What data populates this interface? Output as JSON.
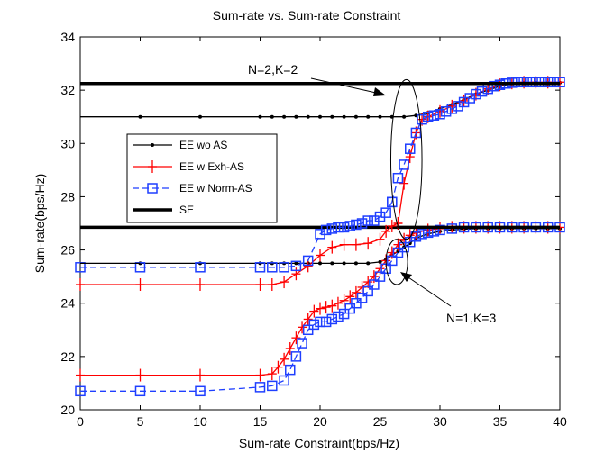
{
  "chart_data": {
    "type": "line",
    "title": "Sum-rate vs. Sum-rate Constraint",
    "xlabel": "Sum-rate Constraint(bps/Hz)",
    "ylabel": "Sum-rate(bps/Hz)",
    "xlim": [
      0,
      40
    ],
    "ylim": [
      20,
      34
    ],
    "xticks": [
      0,
      5,
      10,
      15,
      20,
      25,
      30,
      35,
      40
    ],
    "yticks": [
      20,
      22,
      24,
      26,
      28,
      30,
      32,
      34
    ],
    "grid": false,
    "legend_position": "center-left",
    "series": [
      {
        "name": "EE wo AS",
        "group": "N=2,K=2",
        "color": "#000000",
        "marker": "dot",
        "dash": "solid",
        "x": [
          5,
          10,
          15,
          16,
          17,
          18,
          19,
          20,
          21,
          22,
          23,
          24,
          25,
          26,
          27,
          28,
          29,
          30,
          31,
          32,
          33,
          34,
          35,
          36,
          37,
          38,
          39,
          40
        ],
        "y": [
          31.0,
          31.0,
          31.0,
          31.0,
          31.0,
          31.0,
          31.0,
          31.0,
          31.0,
          31.0,
          31.0,
          31.0,
          31.0,
          31.0,
          31.0,
          31.05,
          31.15,
          31.3,
          31.45,
          31.65,
          31.85,
          32.0,
          32.15,
          32.25,
          32.28,
          32.28,
          32.28,
          32.28
        ]
      },
      {
        "name": "EE w Exh-AS",
        "group": "N=2,K=2",
        "color": "#ff0000",
        "marker": "plus",
        "dash": "solid",
        "x": [
          26.5,
          27,
          27.5,
          28,
          28.5,
          29,
          30,
          31,
          32,
          33,
          34,
          35,
          36,
          37,
          38,
          39,
          40
        ],
        "y": [
          27.0,
          28.5,
          29.5,
          30.4,
          30.9,
          31.0,
          31.2,
          31.4,
          31.6,
          31.85,
          32.05,
          32.2,
          32.27,
          32.3,
          32.3,
          32.3,
          32.3
        ]
      },
      {
        "name": "EE w Norm-AS",
        "group": "N=2,K=2",
        "color": "#1f3fff",
        "marker": "square",
        "dash": "dashed",
        "x": [
          26,
          26.5,
          27,
          27.5,
          28,
          28.5,
          29,
          29.5,
          30,
          30.5,
          31,
          31.5,
          32,
          32.5,
          33,
          33.5,
          34,
          34.5,
          35,
          35.5,
          36,
          36.5,
          37,
          37.5,
          38,
          38.5,
          39,
          39.5,
          40
        ],
        "y": [
          27.8,
          28.7,
          29.2,
          29.8,
          30.4,
          30.9,
          31.0,
          31.05,
          31.1,
          31.2,
          31.3,
          31.4,
          31.55,
          31.7,
          31.85,
          31.95,
          32.05,
          32.15,
          32.2,
          32.25,
          32.28,
          32.3,
          32.3,
          32.3,
          32.3,
          32.3,
          32.3,
          32.3,
          32.3
        ]
      },
      {
        "name": "SE",
        "group": "N=2,K=2",
        "color": "#000000",
        "marker": "none",
        "dash": "thick",
        "x": [
          0,
          40
        ],
        "y": [
          32.25,
          32.25
        ]
      },
      {
        "name": "EE wo AS",
        "group": "N=1,K=3",
        "color": "#000000",
        "marker": "dot",
        "dash": "solid",
        "x": [
          5,
          10,
          15,
          16,
          17,
          18,
          19,
          20,
          21,
          22,
          23,
          24,
          25,
          25.5,
          26,
          26.5,
          27,
          27.5,
          28,
          29,
          30,
          31,
          32,
          33,
          34,
          35,
          36,
          37,
          38,
          39,
          40
        ],
        "y": [
          25.5,
          25.5,
          25.5,
          25.5,
          25.5,
          25.5,
          25.5,
          25.5,
          25.5,
          25.5,
          25.5,
          25.5,
          25.55,
          25.65,
          25.8,
          25.95,
          26.1,
          26.25,
          26.45,
          26.6,
          26.7,
          26.75,
          26.78,
          26.8,
          26.8,
          26.8,
          26.8,
          26.8,
          26.8,
          26.8,
          26.8
        ]
      },
      {
        "name": "EE w Exh-AS",
        "group": "N=1,K=3",
        "color": "#ff0000",
        "marker": "plus",
        "dash": "solid",
        "x": [
          0,
          5,
          10,
          15,
          16,
          16.5,
          17,
          17.5,
          18,
          18.5,
          19,
          19.5,
          20,
          20.5,
          21,
          21.5,
          22,
          22.5,
          23,
          23.5,
          24,
          24.5,
          25,
          25.5,
          26,
          26.5,
          27,
          27.5,
          28,
          29,
          30,
          31,
          32,
          33,
          34,
          35,
          36,
          37,
          38,
          39,
          40
        ],
        "y": [
          21.3,
          21.3,
          21.3,
          21.3,
          21.35,
          21.6,
          21.9,
          22.3,
          22.7,
          23.1,
          23.4,
          23.7,
          23.8,
          23.85,
          23.9,
          24.0,
          24.1,
          24.25,
          24.4,
          24.6,
          24.8,
          25.0,
          25.3,
          25.6,
          25.9,
          26.2,
          26.4,
          26.55,
          26.65,
          26.75,
          26.8,
          26.85,
          26.85,
          26.85,
          26.85,
          26.85,
          26.85,
          26.85,
          26.85,
          26.85,
          26.85
        ]
      },
      {
        "name": "EE w Norm-AS",
        "group": "N=1,K=3",
        "color": "#1f3fff",
        "marker": "square",
        "dash": "dashed",
        "x": [
          0,
          5,
          10,
          15,
          16,
          17,
          17.5,
          18,
          18.5,
          19,
          19.5,
          20,
          20.5,
          21,
          21.5,
          22,
          22.5,
          23,
          23.5,
          24,
          24.5,
          25,
          25.5,
          26,
          26.5,
          27,
          27.5,
          28,
          28.5,
          29,
          29.5,
          30,
          31,
          32,
          33,
          34,
          35,
          36,
          37,
          38,
          39,
          40
        ],
        "y": [
          20.7,
          20.7,
          20.7,
          20.85,
          20.9,
          21.1,
          21.5,
          22.0,
          22.5,
          23.0,
          23.2,
          23.3,
          23.3,
          23.4,
          23.5,
          23.6,
          23.8,
          24.0,
          24.2,
          24.45,
          24.7,
          25.0,
          25.3,
          25.6,
          25.9,
          26.1,
          26.3,
          26.5,
          26.6,
          26.65,
          26.7,
          26.75,
          26.8,
          26.85,
          26.85,
          26.85,
          26.85,
          26.85,
          26.85,
          26.85,
          26.85,
          26.85
        ]
      },
      {
        "name": "SE",
        "group": "N=1,K=3",
        "color": "#000000",
        "marker": "none",
        "dash": "thick",
        "x": [
          0,
          40
        ],
        "y": [
          26.85,
          26.85
        ]
      },
      {
        "name": "EE wo AS",
        "group": "N=2,K=2 low",
        "color": "#000000",
        "marker": "none",
        "dash": "solid",
        "x": [
          0,
          5
        ],
        "y": [
          31.0,
          31.0
        ]
      },
      {
        "name": "EE w Exh-AS",
        "group": "N=2,K=2 low",
        "color": "#ff0000",
        "marker": "plus",
        "dash": "solid",
        "x": [
          0,
          5,
          10,
          15,
          16,
          17,
          18,
          19,
          20,
          21,
          22,
          23,
          24,
          25,
          25.5,
          26,
          26.5
        ],
        "y": [
          24.7,
          24.7,
          24.7,
          24.7,
          24.7,
          24.8,
          25.1,
          25.4,
          25.8,
          26.1,
          26.2,
          26.2,
          26.25,
          26.4,
          26.7,
          26.9,
          27.0
        ]
      },
      {
        "name": "EE w Norm-AS",
        "group": "N=2,K=2 low",
        "color": "#1f3fff",
        "marker": "square",
        "dash": "dashed",
        "x": [
          0,
          5,
          10,
          15,
          16,
          17,
          18,
          19,
          20,
          20.5,
          21,
          21.5,
          22,
          22.5,
          23,
          23.5,
          24,
          24.5,
          25,
          25.5,
          26
        ],
        "y": [
          25.35,
          25.35,
          25.35,
          25.35,
          25.35,
          25.35,
          25.4,
          25.6,
          26.6,
          26.75,
          26.8,
          26.85,
          26.85,
          26.9,
          26.95,
          27.0,
          27.1,
          27.1,
          27.25,
          27.4,
          27.8
        ]
      },
      {
        "name": "EE wo AS",
        "group": "N=1,K=3 low",
        "color": "#000000",
        "marker": "none",
        "dash": "solid",
        "x": [
          0,
          5
        ],
        "y": [
          25.5,
          25.5
        ]
      }
    ],
    "legend": [
      {
        "label": "EE wo AS",
        "color": "#000000",
        "marker": "dot",
        "dash": "solid"
      },
      {
        "label": "EE w Exh-AS",
        "color": "#ff0000",
        "marker": "plus",
        "dash": "solid"
      },
      {
        "label": "EE w Norm-AS",
        "color": "#1f3fff",
        "marker": "square",
        "dash": "dashed"
      },
      {
        "label": "SE",
        "color": "#000000",
        "marker": "none",
        "dash": "thick"
      }
    ],
    "annotations": [
      {
        "text": "N=2,K=2",
        "ellipse_center": [
          27.2,
          29.4
        ],
        "ellipse_rx": 1.3,
        "ellipse_ry": 3.0,
        "arrow_to": [
          26.3,
          31.6
        ]
      },
      {
        "text": "N=1,K=3",
        "ellipse_center": [
          26.4,
          25.55
        ],
        "ellipse_rx": 0.9,
        "ellipse_ry": 0.85,
        "arrow_to": [
          26.8,
          25.4
        ]
      }
    ]
  }
}
